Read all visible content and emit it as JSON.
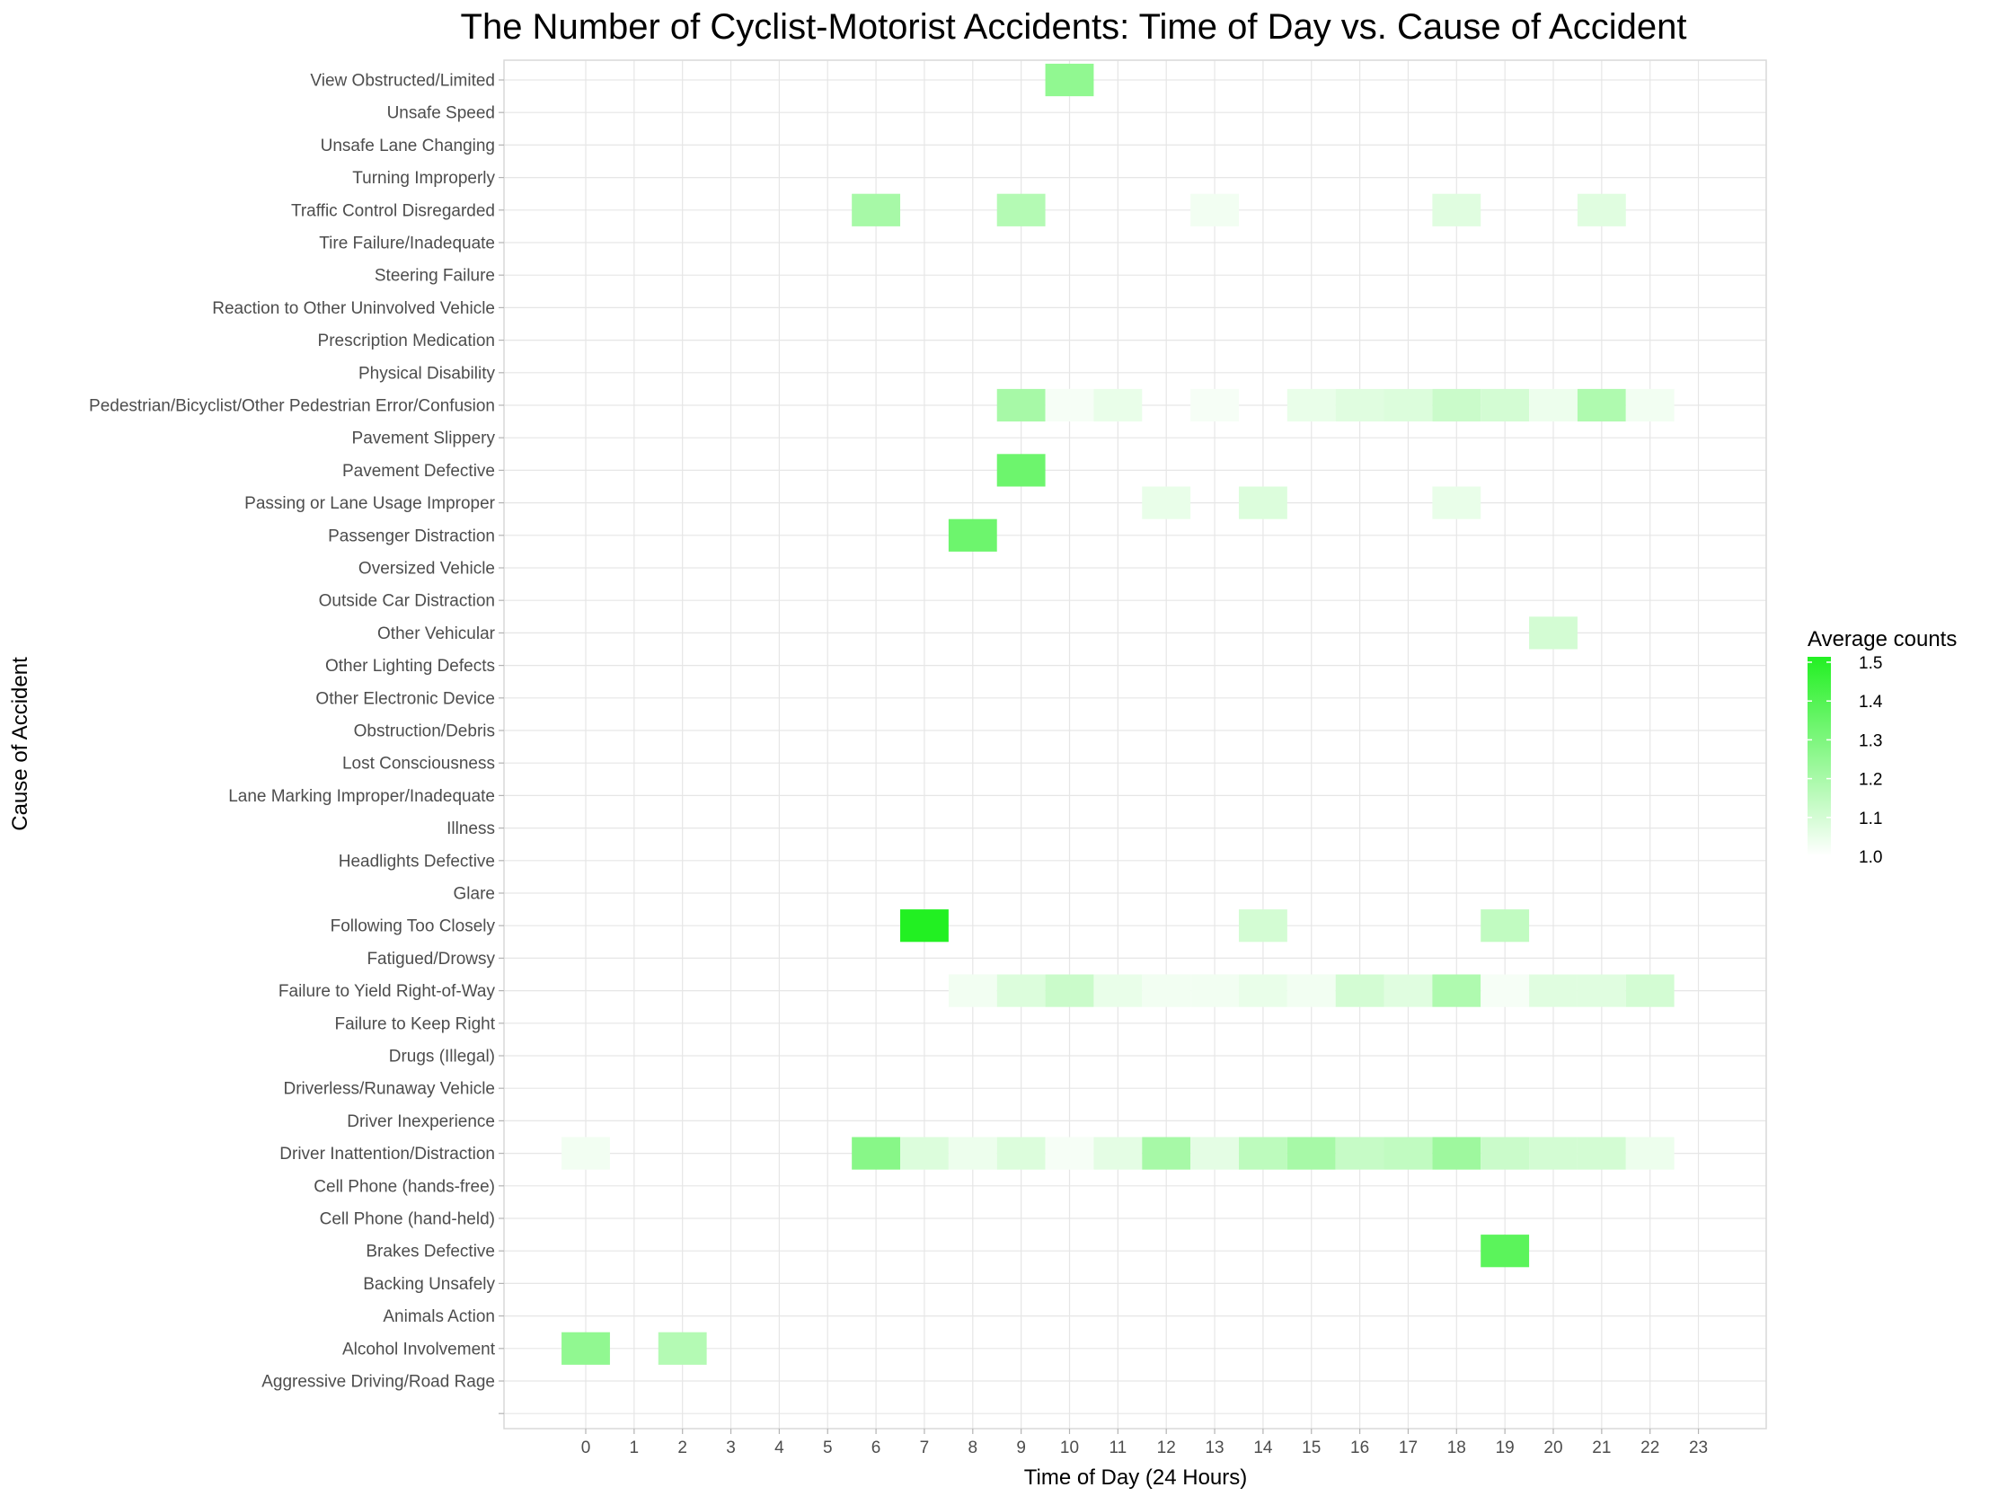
{
  "chart_data": {
    "type": "heatmap",
    "title": "The Number of Cyclist-Motorist Accidents: Time of Day vs. Cause of Accident",
    "xlabel": "Time of Day (24 Hours)",
    "ylabel": "Cause of Accident",
    "x": [
      "0",
      "1",
      "2",
      "3",
      "4",
      "5",
      "6",
      "7",
      "8",
      "9",
      "10",
      "11",
      "12",
      "13",
      "14",
      "15",
      "16",
      "17",
      "18",
      "19",
      "20",
      "21",
      "22",
      "23"
    ],
    "y": [
      "View Obstructed/Limited",
      "Unsafe Speed",
      "Unsafe Lane Changing",
      "Turning Improperly",
      "Traffic Control Disregarded",
      "Tire Failure/Inadequate",
      "Steering Failure",
      "Reaction to Other Uninvolved Vehicle",
      "Prescription Medication",
      "Physical Disability",
      "Pedestrian/Bicyclist/Other Pedestrian Error/Confusion",
      "Pavement Slippery",
      "Pavement Defective",
      "Passing or Lane Usage Improper",
      "Passenger Distraction",
      "Oversized Vehicle",
      "Outside Car Distraction",
      "Other Vehicular",
      "Other Lighting Defects",
      "Other Electronic Device",
      "Obstruction/Debris",
      "Lost Consciousness",
      "Lane Marking Improper/Inadequate",
      "Illness",
      "Headlights Defective",
      "Glare",
      "Following Too Closely",
      "Fatigued/Drowsy",
      "Failure to Yield Right-of-Way",
      "Failure to Keep Right",
      "Drugs (Illegal)",
      "Driverless/Runaway Vehicle",
      "Driver Inexperience",
      "Driver Inattention/Distraction",
      "Cell Phone (hands-free)",
      "Cell Phone (hand-held)",
      "Brakes Defective",
      "Backing Unsafely",
      "Animals Action",
      "Alcohol Involvement",
      "Aggressive Driving/Road Rage",
      ""
    ],
    "cells": [
      {
        "y": "View Obstructed/Limited",
        "x": "10",
        "value": 1.25
      },
      {
        "y": "Traffic Control Disregarded",
        "x": "6",
        "value": 1.2
      },
      {
        "y": "Traffic Control Disregarded",
        "x": "9",
        "value": 1.17
      },
      {
        "y": "Traffic Control Disregarded",
        "x": "13",
        "value": 1.03
      },
      {
        "y": "Traffic Control Disregarded",
        "x": "18",
        "value": 1.07
      },
      {
        "y": "Traffic Control Disregarded",
        "x": "21",
        "value": 1.07
      },
      {
        "y": "Pedestrian/Bicyclist/Other Pedestrian Error/Confusion",
        "x": "9",
        "value": 1.2
      },
      {
        "y": "Pedestrian/Bicyclist/Other Pedestrian Error/Confusion",
        "x": "10",
        "value": 1.02
      },
      {
        "y": "Pedestrian/Bicyclist/Other Pedestrian Error/Confusion",
        "x": "11",
        "value": 1.05
      },
      {
        "y": "Pedestrian/Bicyclist/Other Pedestrian Error/Confusion",
        "x": "13",
        "value": 1.02
      },
      {
        "y": "Pedestrian/Bicyclist/Other Pedestrian Error/Confusion",
        "x": "15",
        "value": 1.05
      },
      {
        "y": "Pedestrian/Bicyclist/Other Pedestrian Error/Confusion",
        "x": "16",
        "value": 1.07
      },
      {
        "y": "Pedestrian/Bicyclist/Other Pedestrian Error/Confusion",
        "x": "17",
        "value": 1.08
      },
      {
        "y": "Pedestrian/Bicyclist/Other Pedestrian Error/Confusion",
        "x": "18",
        "value": 1.12
      },
      {
        "y": "Pedestrian/Bicyclist/Other Pedestrian Error/Confusion",
        "x": "19",
        "value": 1.1
      },
      {
        "y": "Pedestrian/Bicyclist/Other Pedestrian Error/Confusion",
        "x": "20",
        "value": 1.04
      },
      {
        "y": "Pedestrian/Bicyclist/Other Pedestrian Error/Confusion",
        "x": "21",
        "value": 1.18
      },
      {
        "y": "Pedestrian/Bicyclist/Other Pedestrian Error/Confusion",
        "x": "22",
        "value": 1.03
      },
      {
        "y": "Pavement Defective",
        "x": "9",
        "value": 1.33
      },
      {
        "y": "Passing or Lane Usage Improper",
        "x": "12",
        "value": 1.05
      },
      {
        "y": "Passing or Lane Usage Improper",
        "x": "14",
        "value": 1.08
      },
      {
        "y": "Passing or Lane Usage Improper",
        "x": "18",
        "value": 1.05
      },
      {
        "y": "Passenger Distraction",
        "x": "8",
        "value": 1.33
      },
      {
        "y": "Other Vehicular",
        "x": "20",
        "value": 1.1
      },
      {
        "y": "Following Too Closely",
        "x": "7",
        "value": 1.5
      },
      {
        "y": "Following Too Closely",
        "x": "14",
        "value": 1.1
      },
      {
        "y": "Following Too Closely",
        "x": "19",
        "value": 1.14
      },
      {
        "y": "Failure to Yield Right-of-Way",
        "x": "8",
        "value": 1.03
      },
      {
        "y": "Failure to Yield Right-of-Way",
        "x": "9",
        "value": 1.08
      },
      {
        "y": "Failure to Yield Right-of-Way",
        "x": "10",
        "value": 1.12
      },
      {
        "y": "Failure to Yield Right-of-Way",
        "x": "11",
        "value": 1.05
      },
      {
        "y": "Failure to Yield Right-of-Way",
        "x": "12",
        "value": 1.03
      },
      {
        "y": "Failure to Yield Right-of-Way",
        "x": "13",
        "value": 1.03
      },
      {
        "y": "Failure to Yield Right-of-Way",
        "x": "14",
        "value": 1.05
      },
      {
        "y": "Failure to Yield Right-of-Way",
        "x": "15",
        "value": 1.03
      },
      {
        "y": "Failure to Yield Right-of-Way",
        "x": "16",
        "value": 1.1
      },
      {
        "y": "Failure to Yield Right-of-Way",
        "x": "17",
        "value": 1.07
      },
      {
        "y": "Failure to Yield Right-of-Way",
        "x": "18",
        "value": 1.18
      },
      {
        "y": "Failure to Yield Right-of-Way",
        "x": "19",
        "value": 1.02
      },
      {
        "y": "Failure to Yield Right-of-Way",
        "x": "20",
        "value": 1.07
      },
      {
        "y": "Failure to Yield Right-of-Way",
        "x": "21",
        "value": 1.07
      },
      {
        "y": "Failure to Yield Right-of-Way",
        "x": "22",
        "value": 1.1
      },
      {
        "y": "Driver Inattention/Distraction",
        "x": "0",
        "value": 1.03
      },
      {
        "y": "Driver Inattention/Distraction",
        "x": "6",
        "value": 1.27
      },
      {
        "y": "Driver Inattention/Distraction",
        "x": "7",
        "value": 1.08
      },
      {
        "y": "Driver Inattention/Distraction",
        "x": "8",
        "value": 1.04
      },
      {
        "y": "Driver Inattention/Distraction",
        "x": "9",
        "value": 1.08
      },
      {
        "y": "Driver Inattention/Distraction",
        "x": "10",
        "value": 1.02
      },
      {
        "y": "Driver Inattention/Distraction",
        "x": "11",
        "value": 1.06
      },
      {
        "y": "Driver Inattention/Distraction",
        "x": "12",
        "value": 1.2
      },
      {
        "y": "Driver Inattention/Distraction",
        "x": "13",
        "value": 1.06
      },
      {
        "y": "Driver Inattention/Distraction",
        "x": "14",
        "value": 1.15
      },
      {
        "y": "Driver Inattention/Distraction",
        "x": "15",
        "value": 1.2
      },
      {
        "y": "Driver Inattention/Distraction",
        "x": "16",
        "value": 1.13
      },
      {
        "y": "Driver Inattention/Distraction",
        "x": "17",
        "value": 1.14
      },
      {
        "y": "Driver Inattention/Distraction",
        "x": "18",
        "value": 1.22
      },
      {
        "y": "Driver Inattention/Distraction",
        "x": "19",
        "value": 1.12
      },
      {
        "y": "Driver Inattention/Distraction",
        "x": "20",
        "value": 1.1
      },
      {
        "y": "Driver Inattention/Distraction",
        "x": "21",
        "value": 1.1
      },
      {
        "y": "Driver Inattention/Distraction",
        "x": "22",
        "value": 1.04
      },
      {
        "y": "Brakes Defective",
        "x": "19",
        "value": 1.37
      },
      {
        "y": "Alcohol Involvement",
        "x": "0",
        "value": 1.25
      },
      {
        "y": "Alcohol Involvement",
        "x": "2",
        "value": 1.17
      }
    ],
    "legend": {
      "title": "Average counts",
      "placement": "right",
      "range": [
        1.0,
        1.5
      ],
      "ticks": [
        "1.5",
        "1.4",
        "1.3",
        "1.2",
        "1.1",
        "1.0"
      ],
      "low_color": "#ffffff",
      "high_color": "#22f022"
    },
    "grid": true,
    "grid_color": "#e6e6e6",
    "panel_border_color": "#d9d9d9"
  }
}
